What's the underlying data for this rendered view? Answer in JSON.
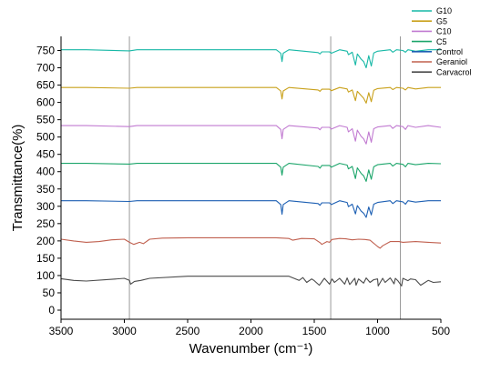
{
  "chart_data": {
    "type": "line",
    "xlabel": "Wavenumber (cm⁻¹)",
    "ylabel": "Transmittance(%)",
    "xlim": [
      3500,
      500
    ],
    "ylim": [
      0,
      750
    ],
    "x_reversed": true,
    "x_ticks": [
      "3500",
      "3000",
      "2500",
      "2000",
      "1500",
      "1000",
      "500"
    ],
    "y_ticks": [
      "0",
      "50",
      "100",
      "150",
      "200",
      "250",
      "300",
      "350",
      "400",
      "450",
      "500",
      "550",
      "600",
      "650",
      "700",
      "750"
    ],
    "reference_lines_x": [
      2960,
      1370,
      820
    ],
    "legend_position": "top-right",
    "series": [
      {
        "name": "G10",
        "color": "#17b8a6",
        "x": [
          3500,
          3300,
          2960,
          2900,
          1800,
          1765,
          1755,
          1745,
          1700,
          1470,
          1455,
          1440,
          1380,
          1365,
          1300,
          1240,
          1230,
          1200,
          1175,
          1160,
          1130,
          1110,
          1090,
          1070,
          1050,
          1030,
          1000,
          900,
          880,
          850,
          800,
          780,
          760,
          700,
          600,
          500
        ],
        "values": [
          752,
          752,
          749,
          752,
          752,
          742,
          718,
          742,
          752,
          744,
          740,
          746,
          746,
          742,
          752,
          748,
          738,
          745,
          708,
          740,
          725,
          718,
          700,
          735,
          705,
          743,
          748,
          752,
          745,
          752,
          750,
          745,
          752,
          748,
          752,
          752
        ]
      },
      {
        "name": "G5",
        "color": "#c9a11b",
        "x": [
          3500,
          3300,
          2960,
          2900,
          1800,
          1765,
          1755,
          1745,
          1700,
          1470,
          1455,
          1440,
          1380,
          1365,
          1300,
          1240,
          1230,
          1200,
          1175,
          1160,
          1130,
          1110,
          1090,
          1070,
          1050,
          1030,
          1000,
          900,
          880,
          850,
          800,
          780,
          760,
          700,
          600,
          500
        ],
        "values": [
          643,
          643,
          641,
          643,
          643,
          633,
          610,
          633,
          643,
          636,
          632,
          638,
          638,
          634,
          643,
          639,
          630,
          636,
          605,
          632,
          620,
          612,
          598,
          628,
          602,
          635,
          640,
          643,
          637,
          643,
          641,
          636,
          643,
          639,
          643,
          643
        ]
      },
      {
        "name": "C10",
        "color": "#c17ad1",
        "x": [
          3500,
          3300,
          2960,
          2900,
          1800,
          1765,
          1755,
          1745,
          1700,
          1470,
          1455,
          1440,
          1380,
          1365,
          1300,
          1240,
          1230,
          1200,
          1175,
          1160,
          1130,
          1110,
          1090,
          1070,
          1050,
          1030,
          1000,
          900,
          880,
          850,
          800,
          780,
          760,
          700,
          600,
          500
        ],
        "values": [
          533,
          533,
          530,
          533,
          533,
          522,
          495,
          522,
          533,
          526,
          521,
          528,
          528,
          523,
          533,
          528,
          515,
          524,
          488,
          520,
          502,
          495,
          480,
          515,
          485,
          524,
          529,
          533,
          525,
          533,
          530,
          522,
          533,
          528,
          533,
          528
        ]
      },
      {
        "name": "C5",
        "color": "#1ba56a",
        "x": [
          3500,
          3300,
          2960,
          2900,
          1800,
          1765,
          1755,
          1745,
          1700,
          1470,
          1455,
          1440,
          1380,
          1365,
          1300,
          1240,
          1230,
          1200,
          1175,
          1160,
          1130,
          1110,
          1090,
          1070,
          1050,
          1030,
          1000,
          900,
          880,
          850,
          800,
          780,
          760,
          700,
          600,
          500
        ],
        "values": [
          424,
          424,
          422,
          424,
          424,
          413,
          390,
          413,
          424,
          415,
          410,
          418,
          418,
          413,
          424,
          419,
          408,
          415,
          380,
          411,
          395,
          388,
          372,
          405,
          378,
          414,
          420,
          424,
          416,
          424,
          421,
          414,
          424,
          420,
          424,
          423
        ]
      },
      {
        "name": "Control",
        "color": "#1c5fb3",
        "x": [
          3500,
          3300,
          2960,
          2900,
          1800,
          1765,
          1755,
          1745,
          1700,
          1470,
          1455,
          1440,
          1380,
          1365,
          1300,
          1240,
          1230,
          1200,
          1175,
          1160,
          1130,
          1110,
          1090,
          1070,
          1050,
          1030,
          1000,
          900,
          880,
          850,
          800,
          780,
          760,
          700,
          600,
          500
        ],
        "values": [
          316,
          316,
          314,
          316,
          316,
          305,
          277,
          305,
          316,
          308,
          303,
          310,
          310,
          305,
          316,
          311,
          299,
          306,
          278,
          302,
          286,
          280,
          268,
          298,
          275,
          306,
          311,
          316,
          308,
          316,
          313,
          306,
          316,
          312,
          316,
          316
        ]
      },
      {
        "name": "Geraniol",
        "color": "#c0604f",
        "x": [
          3500,
          3400,
          3300,
          3200,
          3100,
          3000,
          2960,
          2925,
          2880,
          2850,
          2800,
          2700,
          2500,
          2000,
          1800,
          1700,
          1670,
          1600,
          1500,
          1450,
          1440,
          1400,
          1380,
          1360,
          1300,
          1250,
          1200,
          1150,
          1100,
          1060,
          1000,
          980,
          960,
          900,
          830,
          800,
          700,
          600,
          500
        ],
        "values": [
          205,
          200,
          196,
          198,
          203,
          205,
          196,
          190,
          196,
          192,
          205,
          208,
          209,
          209,
          209,
          207,
          202,
          207,
          206,
          194,
          190,
          198,
          196,
          204,
          207,
          206,
          203,
          205,
          204,
          202,
          184,
          179,
          186,
          198,
          198,
          196,
          198,
          196,
          194
        ]
      },
      {
        "name": "Carvacrol",
        "color": "#4a4a4a",
        "x": [
          3500,
          3400,
          3300,
          3100,
          3000,
          2960,
          2950,
          2920,
          2870,
          2800,
          2500,
          2000,
          1700,
          1620,
          1590,
          1560,
          1520,
          1500,
          1460,
          1420,
          1380,
          1360,
          1340,
          1300,
          1260,
          1240,
          1220,
          1180,
          1170,
          1150,
          1110,
          1090,
          1060,
          1030,
          1000,
          995,
          960,
          940,
          900,
          870,
          860,
          840,
          810,
          800,
          760,
          740,
          700,
          660,
          600,
          560,
          500
        ],
        "values": [
          91,
          86,
          84,
          89,
          92,
          86,
          75,
          83,
          86,
          92,
          98,
          98,
          98,
          86,
          94,
          80,
          90,
          85,
          72,
          92,
          75,
          90,
          80,
          92,
          75,
          93,
          74,
          92,
          72,
          90,
          78,
          93,
          80,
          88,
          90,
          70,
          92,
          80,
          93,
          76,
          92,
          85,
          70,
          92,
          85,
          90,
          88,
          72,
          86,
          80,
          82
        ]
      }
    ]
  }
}
